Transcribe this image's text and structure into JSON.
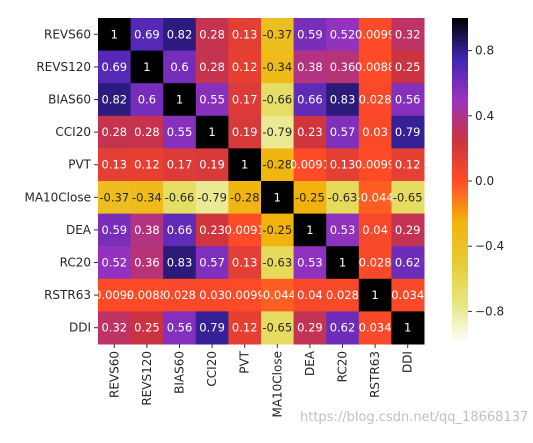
{
  "chart_data": {
    "type": "heatmap",
    "title": "",
    "xlabel": "",
    "ylabel": "",
    "row_labels": [
      "REVS60",
      "REVS120",
      "BIAS60",
      "CCI20",
      "PVT",
      "MA10Close",
      "DEA",
      "RC20",
      "RSTR63",
      "DDI"
    ],
    "col_labels": [
      "REVS60",
      "REVS120",
      "BIAS60",
      "CCI20",
      "PVT",
      "MA10Close",
      "DEA",
      "RC20",
      "RSTR63",
      "DDI"
    ],
    "values": [
      [
        1,
        0.69,
        0.82,
        0.28,
        0.13,
        -0.37,
        0.59,
        0.52,
        0.0099,
        0.32
      ],
      [
        0.69,
        1,
        0.6,
        0.28,
        0.12,
        -0.34,
        0.38,
        0.36,
        0.0088,
        0.25
      ],
      [
        0.82,
        0.6,
        1,
        0.55,
        0.17,
        -0.66,
        0.66,
        0.83,
        0.028,
        0.56
      ],
      [
        0.28,
        0.28,
        0.55,
        1,
        0.19,
        -0.79,
        0.23,
        0.57,
        0.03,
        0.79
      ],
      [
        0.13,
        0.12,
        0.17,
        0.19,
        1,
        -0.28,
        0.0091,
        0.13,
        0.0099,
        0.12
      ],
      [
        -0.37,
        -0.34,
        -0.66,
        -0.79,
        -0.28,
        1,
        -0.25,
        -0.63,
        -0.044,
        -0.65
      ],
      [
        0.59,
        0.38,
        0.66,
        0.23,
        0.0091,
        -0.25,
        1,
        0.53,
        0.04,
        0.29
      ],
      [
        0.52,
        0.36,
        0.83,
        0.57,
        0.13,
        -0.63,
        0.53,
        1,
        0.028,
        0.62
      ],
      [
        0.0099,
        0.0088,
        0.028,
        0.03,
        0.0099,
        -0.044,
        0.04,
        0.028,
        1,
        0.034
      ],
      [
        0.32,
        0.25,
        0.56,
        0.79,
        0.12,
        -0.65,
        0.29,
        0.62,
        0.034,
        1
      ]
    ],
    "cell_labels": [
      [
        "1",
        "0.69",
        "0.82",
        "0.28",
        "0.13",
        "-0.37",
        "0.59",
        "0.52",
        "0.0099",
        "0.32"
      ],
      [
        "0.69",
        "1",
        "0.6",
        "0.28",
        "0.12",
        "-0.34",
        "0.38",
        "0.36",
        "0.0088",
        "0.25"
      ],
      [
        "0.82",
        "0.6",
        "1",
        "0.55",
        "0.17",
        "-0.66",
        "0.66",
        "0.83",
        "0.028",
        "0.56"
      ],
      [
        "0.28",
        "0.28",
        "0.55",
        "1",
        "0.19",
        "-0.79",
        "0.23",
        "0.57",
        "0.03",
        "0.79"
      ],
      [
        "0.13",
        "0.12",
        "0.17",
        "0.19",
        "1",
        "-0.28",
        "0.0091",
        "0.13",
        "0.0099",
        "0.12"
      ],
      [
        "-0.37",
        "-0.34",
        "-0.66",
        "-0.79",
        "-0.28",
        "1",
        "-0.25",
        "-0.63",
        "-0.044",
        "-0.65"
      ],
      [
        "0.59",
        "0.38",
        "0.66",
        "0.23",
        "0.0091",
        "-0.25",
        "1",
        "0.53",
        "0.04",
        "0.29"
      ],
      [
        "0.52",
        "0.36",
        "0.83",
        "0.57",
        "0.13",
        "-0.63",
        "0.53",
        "1",
        "0.028",
        "0.62"
      ],
      [
        "0.0099",
        "0.0088",
        "0.028",
        "0.03",
        "0.0099",
        "-0.044",
        "0.04",
        "0.028",
        "1",
        "0.034"
      ],
      [
        "0.32",
        "0.25",
        "0.56",
        "0.79",
        "0.12",
        "-0.65",
        "0.29",
        "0.62",
        "0.034",
        "1"
      ]
    ],
    "colormap": "CMRmap_r",
    "vmin": -1,
    "vmax": 1,
    "colorbar_ticks": [
      0.8,
      0.4,
      0.0,
      -0.4,
      -0.8
    ],
    "colorbar_tick_labels": [
      "0.8",
      "0.4",
      "0.0",
      "−0.4",
      "−0.8"
    ]
  },
  "watermark": "https://blog.csdn.net/qq_18668137"
}
